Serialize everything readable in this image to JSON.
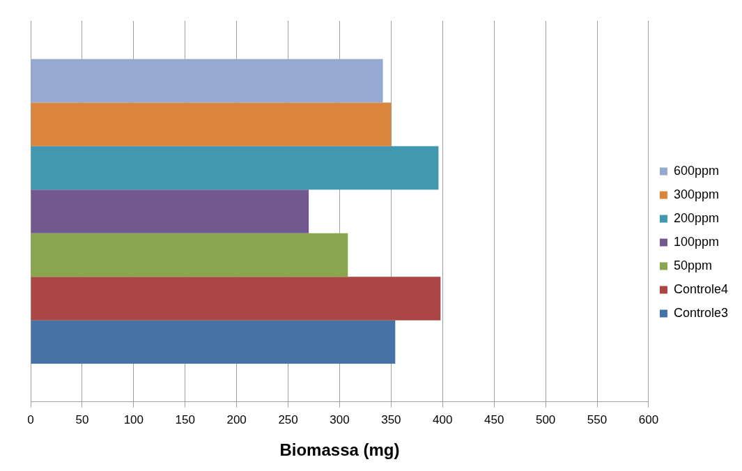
{
  "chart_data": {
    "type": "bar",
    "orientation": "horizontal",
    "xlabel": "Biomassa (mg)",
    "categories": [
      null
    ],
    "series": [
      {
        "name": "600ppm",
        "color": "#95a9d1",
        "values": [
          342
        ]
      },
      {
        "name": "300ppm",
        "color": "#db843d",
        "values": [
          350
        ]
      },
      {
        "name": "200ppm",
        "color": "#4198af",
        "values": [
          396
        ]
      },
      {
        "name": "100ppm",
        "color": "#71588f",
        "values": [
          270
        ]
      },
      {
        "name": "50ppm",
        "color": "#89a54e",
        "values": [
          308
        ]
      },
      {
        "name": "Controle4",
        "color": "#aa4643",
        "values": [
          398
        ]
      },
      {
        "name": "Controle3",
        "color": "#4572a7",
        "values": [
          354
        ]
      }
    ],
    "xlim": [
      0,
      600
    ],
    "xticks": [
      0,
      50,
      100,
      150,
      200,
      250,
      300,
      350,
      400,
      450,
      500,
      550,
      600
    ],
    "grid": "x",
    "legend": "right"
  }
}
